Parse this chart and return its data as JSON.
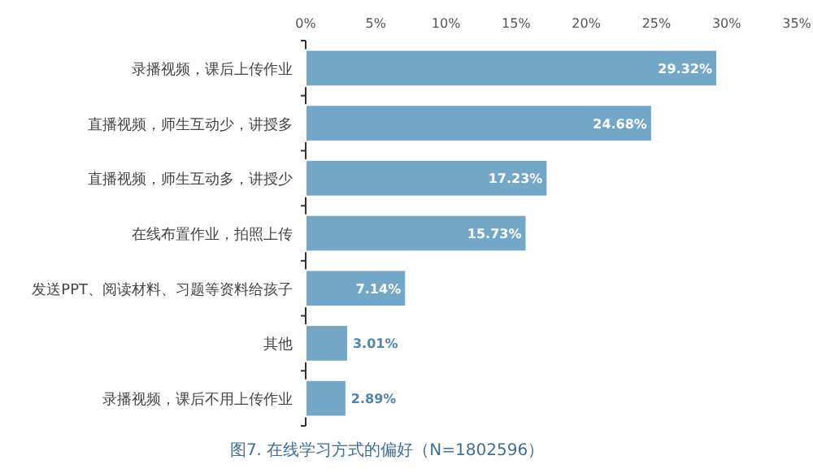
{
  "chart_data": {
    "type": "bar",
    "orientation": "horizontal",
    "title": "图7. 在线学习方式的偏好（N=1802596）",
    "categories": [
      "录播视频，课后上传作业",
      "直播视频，师生互动少，讲授多",
      "直播视频，师生互动多，讲授少",
      "在线布置作业，拍照上传",
      "发送PPT、阅读材料、习题等资料给孩子",
      "其他",
      "录播视频，课后不用上传作业"
    ],
    "values": [
      29.32,
      24.68,
      17.23,
      15.73,
      7.14,
      3.01,
      2.89
    ],
    "value_labels": [
      "29.32%",
      "24.68%",
      "17.23%",
      "15.73%",
      "7.14%",
      "3.01%",
      "2.89%"
    ],
    "color": "#72a7c8",
    "xlim": [
      0,
      35
    ],
    "xticks": [
      {
        "value": 0,
        "label": "0%"
      },
      {
        "value": 5,
        "label": "5%"
      },
      {
        "value": 10,
        "label": "10%"
      },
      {
        "value": 15,
        "label": "15%"
      },
      {
        "value": 20,
        "label": "20%"
      },
      {
        "value": 25,
        "label": "25%"
      },
      {
        "value": 30,
        "label": "30%"
      },
      {
        "value": 35,
        "label": "35%"
      }
    ],
    "grid": false
  }
}
